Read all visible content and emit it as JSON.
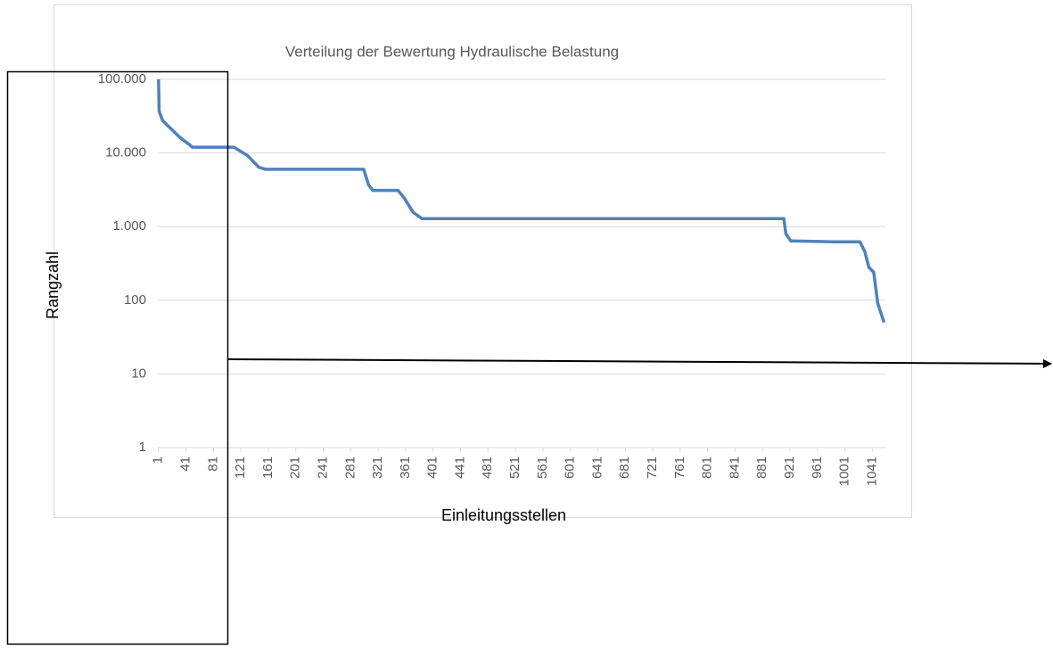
{
  "chart_data": {
    "type": "line",
    "title": "Verteilung der Bewertung Hydraulische Belastung",
    "xlabel": "Einleitungsstellen",
    "ylabel": "Rangzahl",
    "x": [
      1,
      2,
      7,
      20,
      33,
      46,
      50,
      111,
      131,
      147,
      157,
      300,
      307,
      313,
      350,
      359,
      372,
      385,
      912,
      915,
      922,
      984,
      1023,
      1030,
      1036,
      1043,
      1049,
      1058
    ],
    "values": [
      100000,
      37000,
      27500,
      21000,
      16000,
      13000,
      12000,
      12000,
      9200,
      6400,
      6000,
      6000,
      3700,
      3100,
      3100,
      2440,
      1560,
      1280,
      1280,
      800,
      640,
      620,
      620,
      460,
      280,
      240,
      90,
      50
    ],
    "color": "#4f81bd",
    "log_y": true,
    "grid": true,
    "xlim": [
      0,
      1060
    ],
    "xticks": [
      1,
      41,
      81,
      121,
      161,
      201,
      241,
      281,
      321,
      361,
      401,
      441,
      481,
      521,
      561,
      601,
      641,
      681,
      721,
      761,
      801,
      841,
      881,
      921,
      961,
      1001,
      1041
    ],
    "ylim": [
      1,
      100000
    ],
    "yticks": [
      1,
      10,
      100,
      {
        "value": 1000,
        "label": "1.000"
      },
      {
        "value": 10000,
        "label": "10.000"
      },
      {
        "value": 100000,
        "label": "100.000"
      }
    ]
  }
}
